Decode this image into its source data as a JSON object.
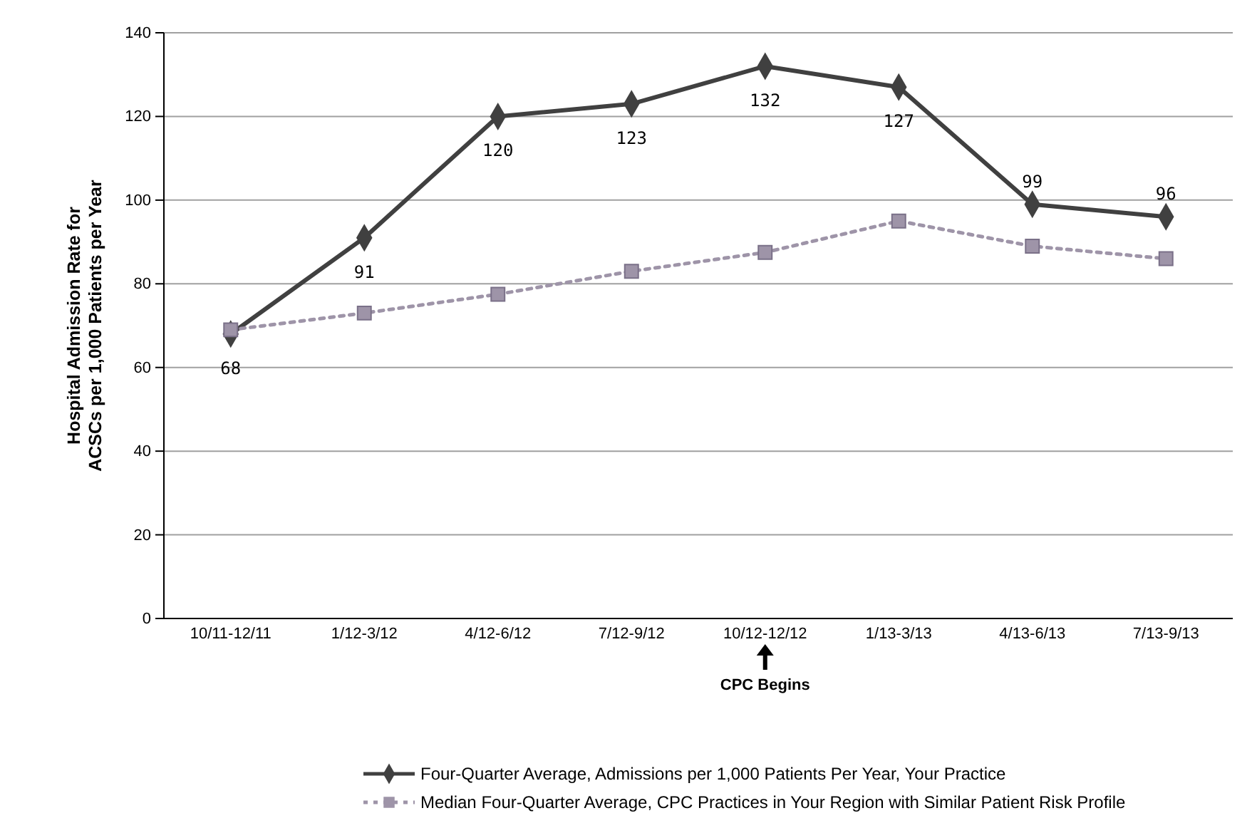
{
  "chart_data": {
    "type": "line",
    "ylabel": "Hospital Admission Rate for ACSCs per 1,000 Patients per Year",
    "categories": [
      "10/11-12/11",
      "1/12-3/12",
      "4/12-6/12",
      "7/12-9/12",
      "10/12-12/12",
      "1/13-3/13",
      "4/13-6/13",
      "7/13-9/13"
    ],
    "series": [
      {
        "name": "Four-Quarter Average, Admissions per 1,000 Patients Per Year, Your Practice",
        "color": "#404040",
        "marker": "diamond",
        "line_style": "solid",
        "values": [
          68,
          91,
          120,
          123,
          132,
          127,
          99,
          96
        ],
        "value_labels": [
          "68",
          "91",
          "120",
          "123",
          "132",
          "127",
          "99",
          "96"
        ]
      },
      {
        "name": "Median Four-Quarter Average, CPC Practices in Your Region with Similar Patient Risk Profile",
        "color": "#9e94a8",
        "marker": "square",
        "line_style": "dotted",
        "values": [
          69,
          73,
          77.5,
          83,
          87.5,
          95,
          89,
          86
        ]
      }
    ],
    "ylim": [
      0,
      140
    ],
    "yticks": [
      0,
      20,
      40,
      60,
      80,
      100,
      120,
      140
    ],
    "grid": "y",
    "legend": "bottom",
    "annotations": [
      "CPC Begins"
    ]
  }
}
